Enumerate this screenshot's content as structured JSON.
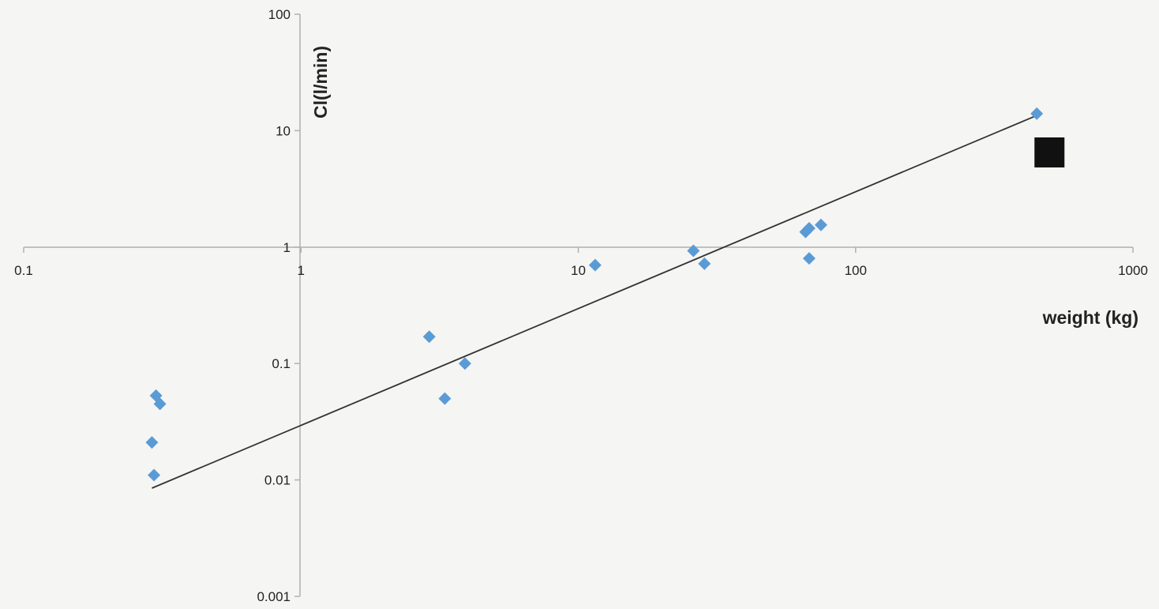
{
  "chart_data": {
    "type": "scatter",
    "title": "",
    "xlabel": "weight (kg)",
    "ylabel": "Cl(l/min)",
    "x_scale": "log",
    "y_scale": "log",
    "xlim": [
      0.1,
      1000
    ],
    "ylim": [
      0.001,
      100
    ],
    "x_ticks": [
      "0.1",
      "1",
      "10",
      "100",
      "1000"
    ],
    "y_ticks": [
      "100",
      "10",
      "1",
      "0.1",
      "0.01",
      "0.001"
    ],
    "grid": false,
    "legend": "none",
    "series": [
      {
        "marker": "diamond",
        "color": "#5b9bd5",
        "points": [
          {
            "x": 0.3,
            "y": 0.053
          },
          {
            "x": 0.31,
            "y": 0.045
          },
          {
            "x": 0.29,
            "y": 0.021
          },
          {
            "x": 0.295,
            "y": 0.011
          },
          {
            "x": 2.9,
            "y": 0.17
          },
          {
            "x": 3.3,
            "y": 0.05
          },
          {
            "x": 3.9,
            "y": 0.1
          },
          {
            "x": 11.5,
            "y": 0.7
          },
          {
            "x": 26,
            "y": 0.93
          },
          {
            "x": 28.5,
            "y": 0.72
          },
          {
            "x": 66,
            "y": 1.35
          },
          {
            "x": 68,
            "y": 1.45
          },
          {
            "x": 68,
            "y": 0.8
          },
          {
            "x": 75,
            "y": 1.55
          },
          {
            "x": 450,
            "y": 14
          }
        ]
      },
      {
        "marker": "square",
        "color": "#111111",
        "points": [
          {
            "x": 500,
            "y": 6.5
          }
        ]
      }
    ],
    "trendline": {
      "color": "#333333",
      "points": [
        {
          "x": 0.29,
          "y": 0.0085
        },
        {
          "x": 450,
          "y": 13.5
        }
      ]
    }
  }
}
